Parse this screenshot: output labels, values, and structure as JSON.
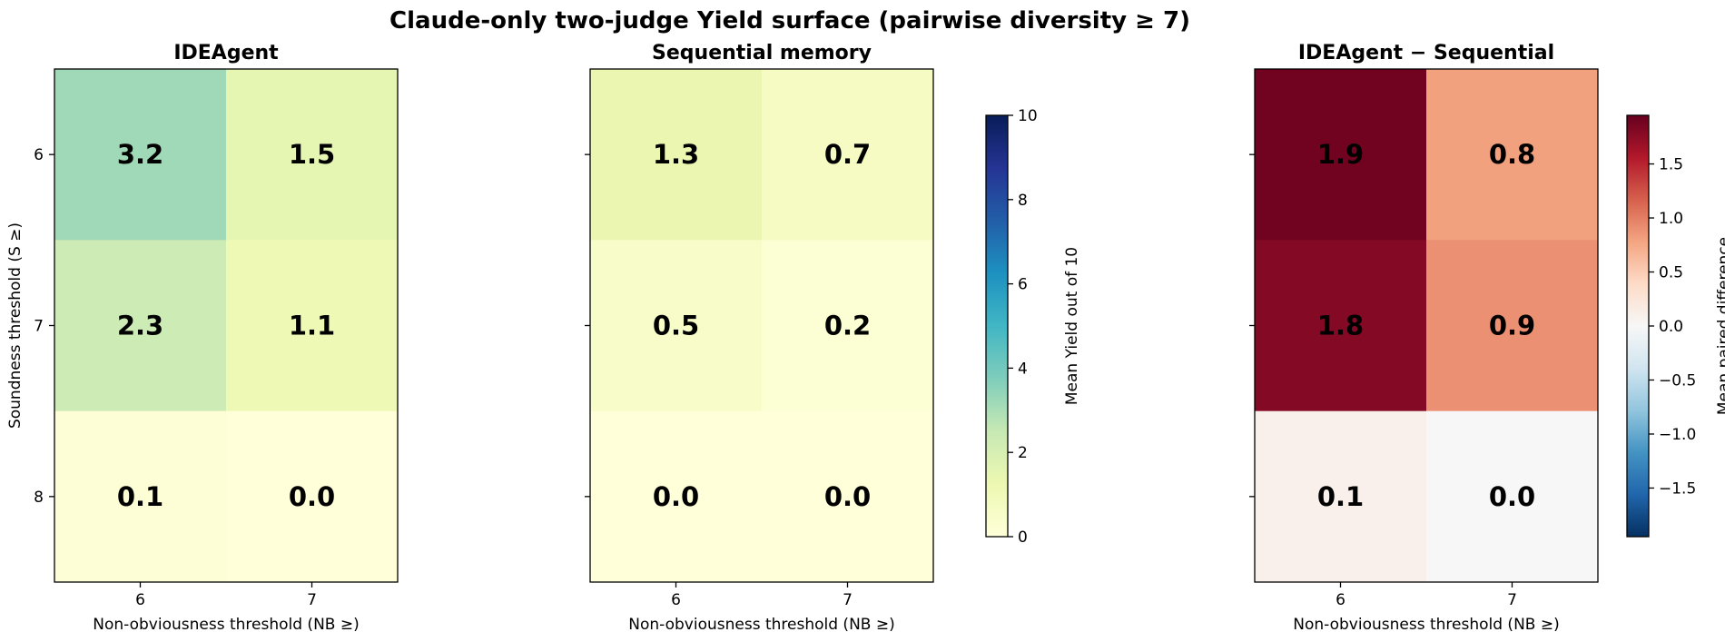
{
  "title": "Claude-only two-judge Yield surface (pairwise diversity ≥ 7)",
  "chart_data": [
    {
      "type": "heatmap",
      "title": "IDEAgent",
      "xlabel": "Non-obviousness threshold (NB ≥)",
      "ylabel": "Soundness threshold (S ≥)",
      "x_categories": [
        "6",
        "7"
      ],
      "y_categories": [
        "6",
        "7",
        "8"
      ],
      "values": [
        [
          3.2,
          1.5
        ],
        [
          2.3,
          1.1
        ],
        [
          0.1,
          0.0
        ]
      ],
      "labels": [
        [
          "3.2",
          "1.5"
        ],
        [
          "2.3",
          "1.1"
        ],
        [
          "0.1",
          "0.0"
        ]
      ],
      "colormap": "YlGnBu",
      "vmin": 0,
      "vmax": 10,
      "colorbar": null
    },
    {
      "type": "heatmap",
      "title": "Sequential memory",
      "xlabel": "Non-obviousness threshold (NB ≥)",
      "ylabel": "",
      "x_categories": [
        "6",
        "7"
      ],
      "y_categories": [
        "6",
        "7",
        "8"
      ],
      "values": [
        [
          1.3,
          0.7
        ],
        [
          0.5,
          0.2
        ],
        [
          0.0,
          0.0
        ]
      ],
      "labels": [
        [
          "1.3",
          "0.7"
        ],
        [
          "0.5",
          "0.2"
        ],
        [
          "0.0",
          "0.0"
        ]
      ],
      "colormap": "YlGnBu",
      "vmin": 0,
      "vmax": 10,
      "colorbar": {
        "label": "Mean Yield out of 10",
        "ticks": [
          0,
          2,
          4,
          6,
          8,
          10
        ],
        "tick_labels": [
          "0",
          "2",
          "4",
          "6",
          "8",
          "10"
        ]
      }
    },
    {
      "type": "heatmap",
      "title": "IDEAgent − Sequential",
      "xlabel": "Non-obviousness threshold (NB ≥)",
      "ylabel": "",
      "x_categories": [
        "6",
        "7"
      ],
      "y_categories": [
        "6",
        "7",
        "8"
      ],
      "values": [
        [
          1.9,
          0.8
        ],
        [
          1.8,
          0.9
        ],
        [
          0.1,
          0.0
        ]
      ],
      "labels": [
        [
          "1.9",
          "0.8"
        ],
        [
          "1.8",
          "0.9"
        ],
        [
          "0.1",
          "0.0"
        ]
      ],
      "colormap": "RdBu_r",
      "vmin": -1.95,
      "vmax": 1.95,
      "colorbar": {
        "label": "Mean paired difference",
        "ticks": [
          -1.5,
          -1.0,
          -0.5,
          0.0,
          0.5,
          1.0,
          1.5
        ],
        "tick_labels": [
          "−1.5",
          "−1.0",
          "−0.5",
          "0.0",
          "0.5",
          "1.0",
          "1.5"
        ]
      }
    }
  ]
}
